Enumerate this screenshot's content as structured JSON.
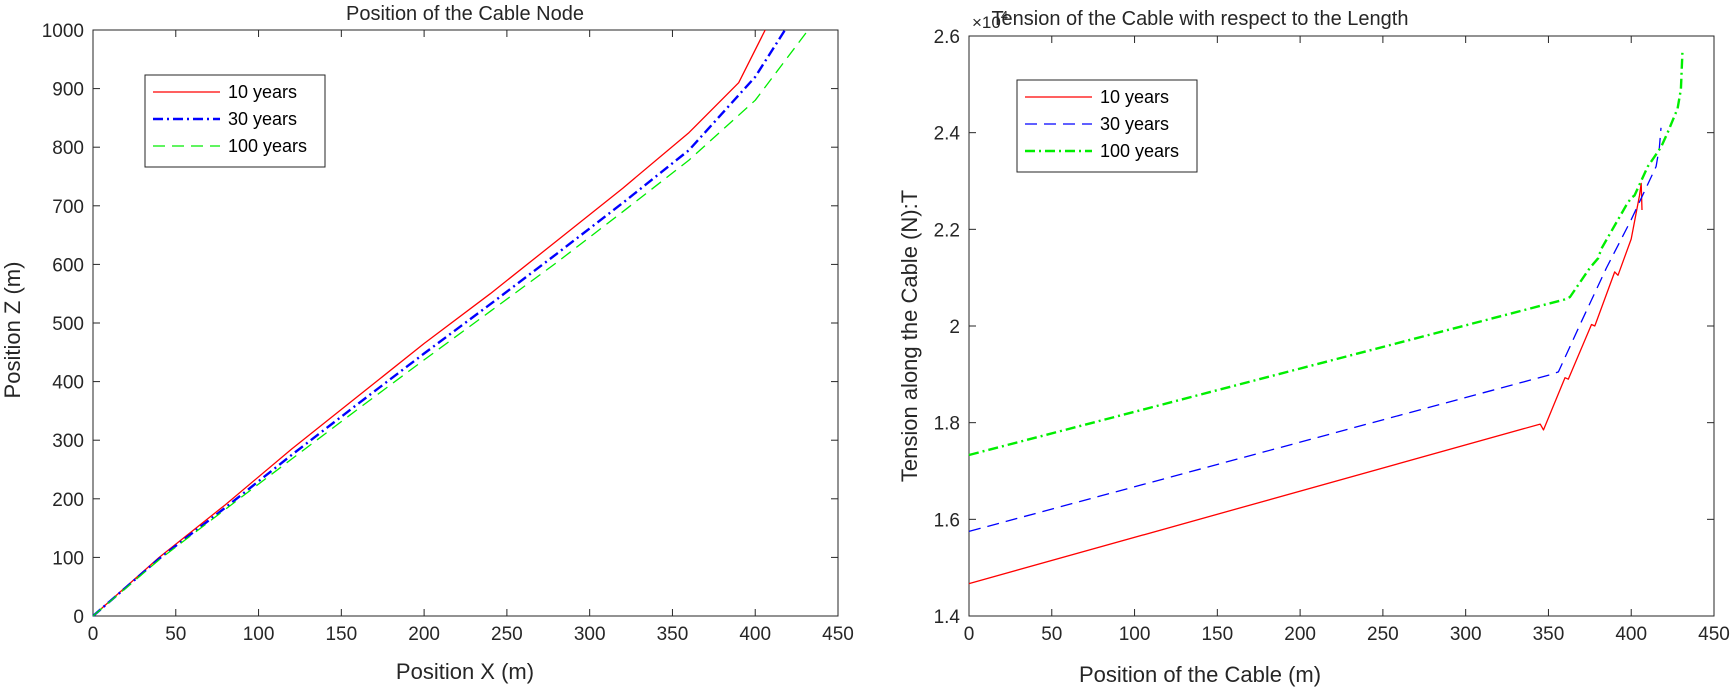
{
  "chart_data": [
    {
      "type": "line",
      "title": "Position of the Cable Node",
      "xlabel": "Position X (m)",
      "ylabel": "Position Z (m)",
      "xlim": [
        0,
        450
      ],
      "ylim": [
        0,
        1000
      ],
      "xticks": [
        0,
        50,
        100,
        150,
        200,
        250,
        300,
        350,
        400,
        450
      ],
      "yticks": [
        0,
        100,
        200,
        300,
        400,
        500,
        600,
        700,
        800,
        900,
        1000
      ],
      "grid": false,
      "legend_position": "top-left",
      "series": [
        {
          "name": "10 years",
          "color": "#ff0000",
          "style": "solid",
          "x": [
            0,
            40,
            80,
            120,
            160,
            200,
            240,
            280,
            320,
            360,
            390,
            406
          ],
          "y": [
            0,
            100,
            190,
            285,
            375,
            465,
            550,
            640,
            730,
            825,
            910,
            1000
          ]
        },
        {
          "name": "30 years",
          "color": "#0000ff",
          "style": "dashdot",
          "x": [
            0,
            40,
            80,
            120,
            160,
            200,
            240,
            280,
            320,
            360,
            400,
            418
          ],
          "y": [
            0,
            98,
            185,
            275,
            362,
            448,
            532,
            618,
            705,
            795,
            920,
            1000
          ]
        },
        {
          "name": "100 years",
          "color": "#00ee00",
          "style": "dashed",
          "x": [
            0,
            40,
            80,
            120,
            160,
            200,
            240,
            280,
            320,
            360,
            400,
            432
          ],
          "y": [
            0,
            96,
            182,
            268,
            353,
            437,
            520,
            603,
            690,
            778,
            880,
            1000
          ]
        }
      ]
    },
    {
      "type": "line",
      "title": "Tension of the Cable with respect to the  Length",
      "xlabel": "Position of the Cable (m)",
      "ylabel": "Tension along the Cable (N):T",
      "exponent_base": "×10",
      "exponent_power": "4",
      "xlim": [
        0,
        450
      ],
      "ylim": [
        1.4,
        2.6
      ],
      "xticks": [
        0,
        50,
        100,
        150,
        200,
        250,
        300,
        350,
        400,
        450
      ],
      "yticks": [
        1.4,
        1.6,
        1.8,
        2,
        2.2,
        2.4,
        2.6
      ],
      "ytick_labels": [
        "1.4",
        "1.6",
        "1.8",
        "2",
        "2.2",
        "2.4",
        "2.6"
      ],
      "grid": false,
      "legend_position": "top-left",
      "series": [
        {
          "name": "10 years",
          "color": "#ff0000",
          "style": "solid",
          "x": [
            0,
            345,
            347,
            360,
            362,
            376,
            378,
            390,
            392,
            400,
            405,
            406,
            406.5
          ],
          "y": [
            1.467,
            1.797,
            1.785,
            1.893,
            1.89,
            2.003,
            2.0,
            2.112,
            2.105,
            2.18,
            2.27,
            2.295,
            2.24
          ]
        },
        {
          "name": "30 years",
          "color": "#0000ff",
          "style": "dashed",
          "x": [
            0,
            352,
            356,
            370,
            385,
            400,
            415,
            417,
            418
          ],
          "y": [
            1.575,
            1.9,
            1.905,
            2.01,
            2.12,
            2.22,
            2.33,
            2.37,
            2.41
          ]
        },
        {
          "name": "100 years",
          "color": "#00ee00",
          "style": "dashdot",
          "x": [
            0,
            360,
            363,
            375,
            380,
            382,
            397,
            400,
            402,
            410,
            418,
            422,
            428,
            430,
            431
          ],
          "y": [
            1.733,
            2.055,
            2.06,
            2.12,
            2.14,
            2.16,
            2.25,
            2.265,
            2.27,
            2.33,
            2.37,
            2.4,
            2.45,
            2.49,
            2.57
          ]
        }
      ]
    }
  ]
}
